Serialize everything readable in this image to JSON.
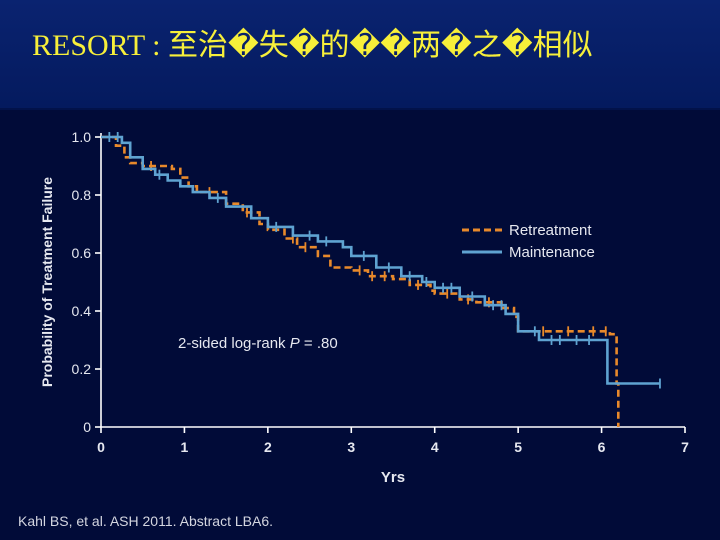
{
  "title": "RESORT : 至治�失�的��两�之�相似",
  "citation": "Kahl BS, et al. ASH 2011. Abstract LBA6.",
  "annotation": "2-sided log-rank P = .80",
  "colors": {
    "background": "#010b38",
    "title_text": "#f7ef3a",
    "axis": "#ffffff",
    "retreatment": "#e8892b",
    "maintenance": "#5fa3d1"
  },
  "chart_data": {
    "type": "line",
    "xlabel": "Yrs",
    "ylabel": "Probability of Treatment Failure",
    "xlim": [
      0,
      7
    ],
    "ylim": [
      0,
      1.0
    ],
    "x_ticks": [
      "0",
      "1",
      "2",
      "3",
      "4",
      "5",
      "6",
      "7"
    ],
    "y_ticks": [
      "0",
      "0.2",
      "0.4",
      "0.6",
      "0.8",
      "1.0"
    ],
    "legend_position": "upper-right",
    "series": [
      {
        "name": "Retreatment",
        "style": "dashed",
        "color": "#e8892b",
        "x": [
          0,
          0.18,
          0.28,
          0.35,
          0.5,
          0.85,
          0.95,
          1.05,
          1.15,
          1.5,
          1.7,
          1.9,
          2.0,
          2.2,
          2.35,
          2.6,
          2.75,
          3.0,
          3.2,
          3.5,
          3.7,
          3.95,
          4.0,
          4.3,
          4.5,
          4.8,
          4.95,
          5.0,
          6.1,
          6.18,
          6.2
        ],
        "y": [
          1.0,
          0.97,
          0.93,
          0.91,
          0.9,
          0.89,
          0.86,
          0.83,
          0.81,
          0.77,
          0.74,
          0.7,
          0.68,
          0.65,
          0.62,
          0.59,
          0.55,
          0.54,
          0.52,
          0.51,
          0.49,
          0.47,
          0.46,
          0.44,
          0.43,
          0.41,
          0.38,
          0.33,
          0.32,
          0.15,
          0.0
        ],
        "censored": [
          0.6,
          1.3,
          1.75,
          2.3,
          2.45,
          3.1,
          3.25,
          3.4,
          3.8,
          4.15,
          4.4,
          4.65,
          5.3,
          5.6,
          5.9,
          6.05
        ]
      },
      {
        "name": "Maintenance",
        "style": "solid",
        "color": "#5fa3d1",
        "x": [
          0,
          0.25,
          0.35,
          0.5,
          0.65,
          0.8,
          0.95,
          1.1,
          1.3,
          1.5,
          1.8,
          2.0,
          2.3,
          2.6,
          2.9,
          3.0,
          3.3,
          3.6,
          3.85,
          4.0,
          4.3,
          4.6,
          4.85,
          5.0,
          5.25,
          6.07,
          6.7
        ],
        "y": [
          1.0,
          0.98,
          0.93,
          0.89,
          0.87,
          0.85,
          0.83,
          0.81,
          0.79,
          0.76,
          0.72,
          0.69,
          0.66,
          0.64,
          0.62,
          0.59,
          0.55,
          0.52,
          0.5,
          0.48,
          0.45,
          0.42,
          0.39,
          0.33,
          0.3,
          0.15,
          0.15
        ],
        "censored": [
          0.1,
          0.2,
          0.7,
          1.4,
          2.1,
          2.5,
          2.7,
          3.15,
          3.45,
          3.7,
          3.9,
          4.1,
          4.2,
          4.45,
          4.7,
          4.8,
          5.2,
          5.4,
          5.5,
          5.7,
          5.85,
          6.7
        ]
      }
    ]
  }
}
